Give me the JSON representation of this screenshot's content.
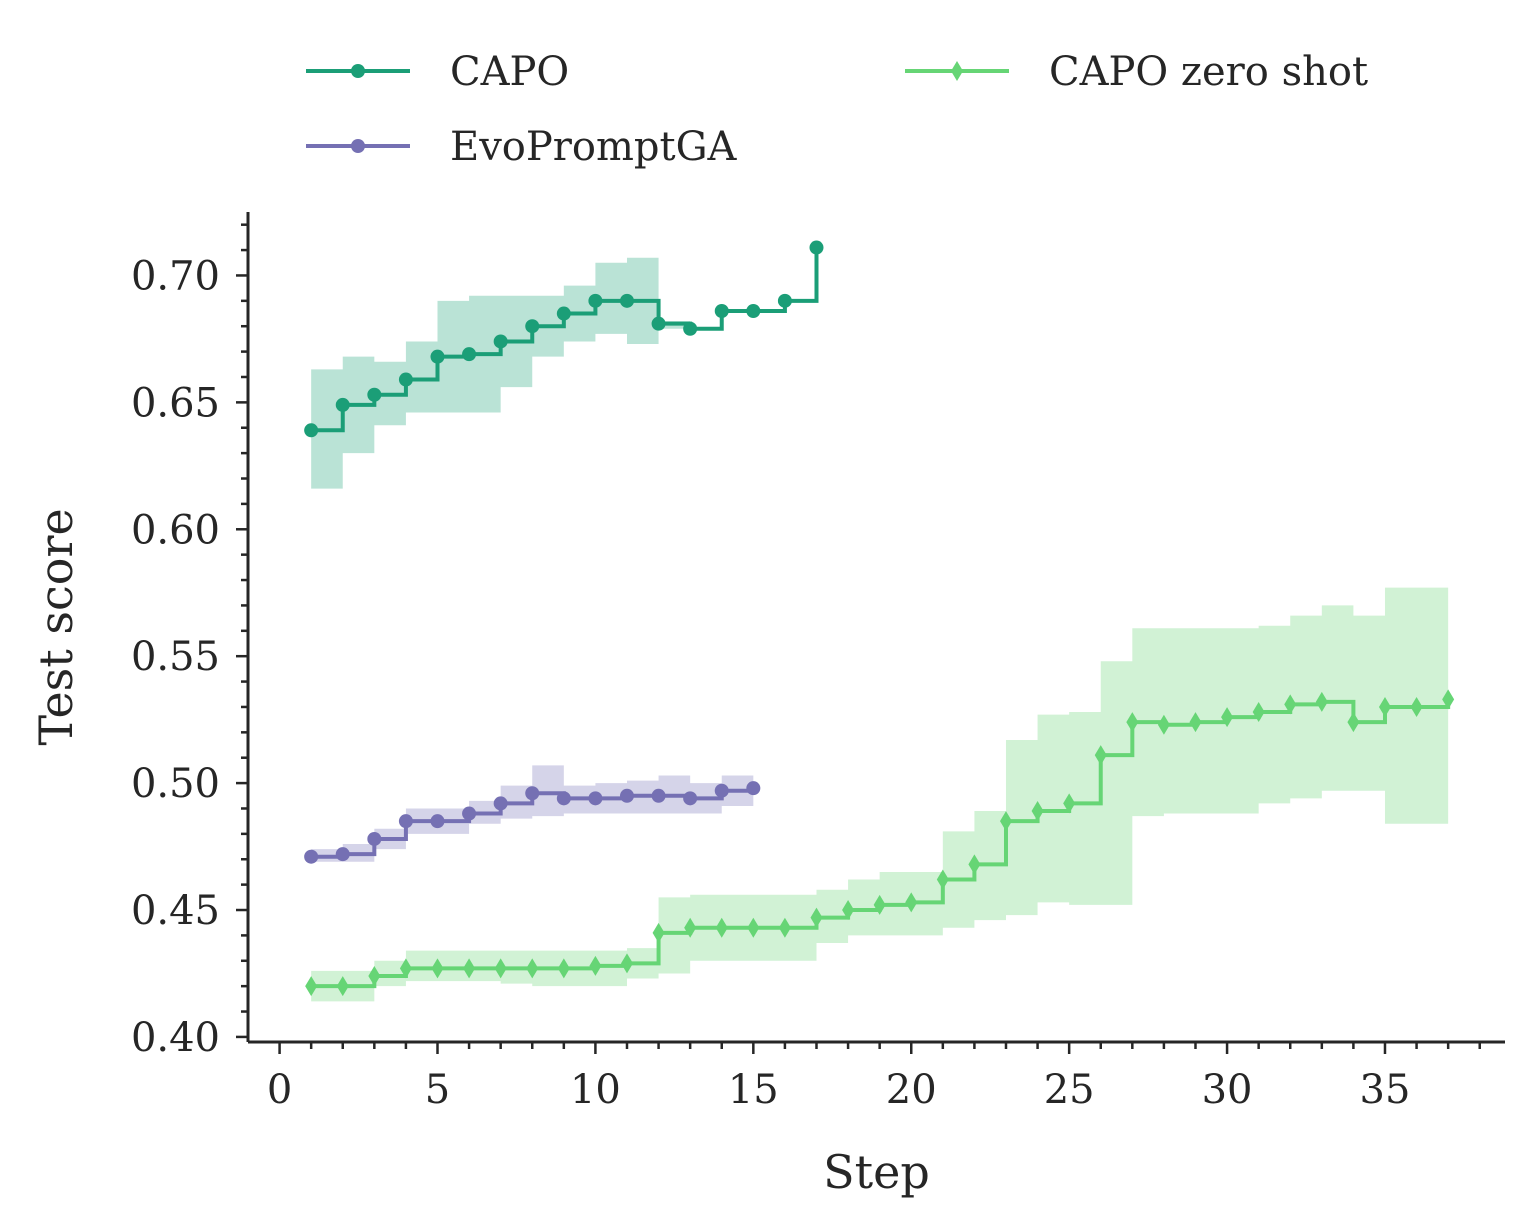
{
  "chart_data": {
    "type": "line",
    "step": true,
    "xlabel": "Step",
    "ylabel": "Test score",
    "xlim": [
      -1,
      38.8
    ],
    "ylim": [
      0.398,
      0.725
    ],
    "xticks": [
      0,
      5,
      10,
      15,
      20,
      25,
      30,
      35
    ],
    "yticks": [
      0.4,
      0.45,
      0.5,
      0.55,
      0.6,
      0.65,
      0.7
    ],
    "xtick_labels": [
      "0",
      "5",
      "10",
      "15",
      "20",
      "25",
      "30",
      "35"
    ],
    "ytick_labels": [
      "0.40",
      "0.45",
      "0.50",
      "0.55",
      "0.60",
      "0.65",
      "0.70"
    ],
    "legend": {
      "placement": "top, above plot, 2 columns",
      "frame": false
    },
    "series": [
      {
        "name": "CAPO",
        "color": "#1b9e77",
        "band_color": "#bae3d6",
        "marker": "circle",
        "x": [
          1,
          2,
          3,
          4,
          5,
          6,
          7,
          8,
          9,
          10,
          11,
          12,
          13,
          14,
          15,
          16,
          17
        ],
        "y": [
          0.639,
          0.649,
          0.653,
          0.659,
          0.668,
          0.669,
          0.674,
          0.68,
          0.685,
          0.69,
          0.69,
          0.681,
          0.679,
          0.686,
          0.686,
          0.69,
          0.711
        ],
        "lower": [
          0.616,
          0.63,
          0.641,
          0.646,
          0.646,
          0.646,
          0.656,
          0.668,
          0.674,
          0.677,
          0.673,
          0.679,
          0.679,
          0.686,
          0.686,
          0.69,
          0.711
        ],
        "upper": [
          0.663,
          0.668,
          0.666,
          0.674,
          0.69,
          0.692,
          0.692,
          0.692,
          0.696,
          0.705,
          0.707,
          0.682,
          0.679,
          0.686,
          0.686,
          0.69,
          0.711
        ]
      },
      {
        "name": "EvoPromptGA",
        "color": "#7570b3",
        "band_color": "#d5d4e9",
        "marker": "circle",
        "x": [
          1,
          2,
          3,
          4,
          5,
          6,
          7,
          8,
          9,
          10,
          11,
          12,
          13,
          14,
          15
        ],
        "y": [
          0.471,
          0.472,
          0.478,
          0.485,
          0.485,
          0.488,
          0.492,
          0.496,
          0.494,
          0.494,
          0.495,
          0.495,
          0.494,
          0.497,
          0.498
        ],
        "lower": [
          0.469,
          0.469,
          0.474,
          0.48,
          0.48,
          0.484,
          0.486,
          0.487,
          0.488,
          0.488,
          0.488,
          0.488,
          0.488,
          0.491,
          0.491
        ],
        "upper": [
          0.474,
          0.476,
          0.482,
          0.49,
          0.49,
          0.493,
          0.499,
          0.507,
          0.499,
          0.5,
          0.501,
          0.503,
          0.5,
          0.503,
          0.503
        ]
      },
      {
        "name": "CAPO zero shot",
        "color": "#66d575",
        "band_color": "#d1f2d5",
        "marker": "thin_diamond",
        "x": [
          1,
          2,
          3,
          4,
          5,
          6,
          7,
          8,
          9,
          10,
          11,
          12,
          13,
          14,
          15,
          16,
          17,
          18,
          19,
          20,
          21,
          22,
          23,
          24,
          25,
          26,
          27,
          28,
          29,
          30,
          31,
          32,
          33,
          34,
          35,
          36,
          37
        ],
        "y": [
          0.42,
          0.42,
          0.424,
          0.427,
          0.427,
          0.427,
          0.427,
          0.427,
          0.427,
          0.428,
          0.429,
          0.441,
          0.443,
          0.443,
          0.443,
          0.443,
          0.447,
          0.45,
          0.452,
          0.453,
          0.462,
          0.468,
          0.485,
          0.489,
          0.492,
          0.511,
          0.524,
          0.523,
          0.524,
          0.526,
          0.528,
          0.531,
          0.532,
          0.524,
          0.53,
          0.53,
          0.533
        ],
        "lower": [
          0.414,
          0.414,
          0.42,
          0.422,
          0.422,
          0.422,
          0.421,
          0.42,
          0.42,
          0.42,
          0.423,
          0.425,
          0.43,
          0.43,
          0.43,
          0.43,
          0.437,
          0.44,
          0.44,
          0.44,
          0.443,
          0.446,
          0.448,
          0.453,
          0.452,
          0.452,
          0.487,
          0.488,
          0.488,
          0.488,
          0.492,
          0.494,
          0.497,
          0.497,
          0.484,
          0.484,
          0.484
        ],
        "upper": [
          0.426,
          0.426,
          0.43,
          0.434,
          0.434,
          0.434,
          0.434,
          0.434,
          0.434,
          0.434,
          0.435,
          0.455,
          0.456,
          0.456,
          0.456,
          0.456,
          0.458,
          0.462,
          0.465,
          0.465,
          0.481,
          0.489,
          0.517,
          0.527,
          0.528,
          0.548,
          0.561,
          0.561,
          0.561,
          0.561,
          0.562,
          0.566,
          0.57,
          0.566,
          0.577,
          0.577,
          0.577
        ]
      }
    ]
  }
}
